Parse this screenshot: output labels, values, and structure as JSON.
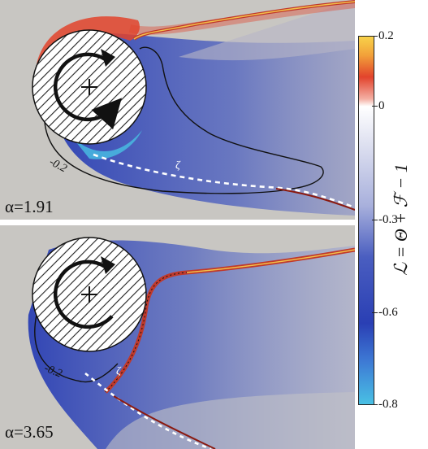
{
  "panels": [
    {
      "alpha_label": "α=1.91",
      "contour_value_label": "-0.2",
      "curve_label": "ζ"
    },
    {
      "alpha_label": "α=3.65",
      "contour_value_label": "-0.2",
      "curve_label": "ζ"
    }
  ],
  "colorbar": {
    "title": "ℒ = Θ + ℱ − 1",
    "ticks": [
      "0.2",
      "0",
      "-0.3",
      "-0.6",
      "-0.8"
    ],
    "range": [
      -0.8,
      0.2
    ],
    "colors": {
      "max": "#f8d24a",
      "positive": "#e2432c",
      "zero": "#ffffff",
      "mid_negative": "#2a3fb4",
      "min": "#49c0e4"
    }
  }
}
